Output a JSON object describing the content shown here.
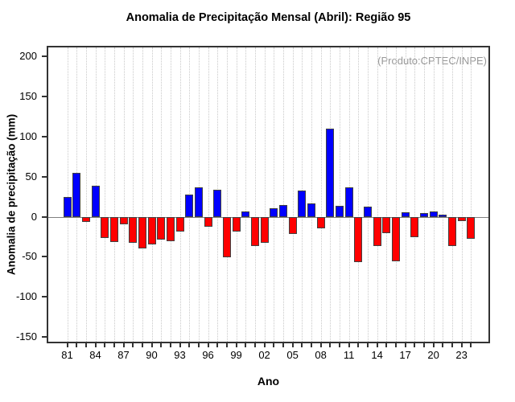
{
  "chart_data": {
    "type": "bar",
    "title": "Anomalia de Precipitação Mensal (Abril): Região 95",
    "xlabel": "Ano",
    "ylabel": "Anomalia de precipitação (mm)",
    "annotation": "(Produto:CPTEC/INPE)",
    "grid": "vertical-dotted",
    "legend_position": "none",
    "ylim": [
      -158,
      213
    ],
    "yticks": [
      200,
      150,
      100,
      50,
      0,
      -50,
      -100,
      -150
    ],
    "xticks_labeled": [
      "81",
      "84",
      "87",
      "90",
      "93",
      "96",
      "99",
      "02",
      "05",
      "08",
      "11",
      "14",
      "17",
      "20",
      "23"
    ],
    "bar_colors": {
      "positive": "#0000ff",
      "negative": "#ff0000"
    },
    "categories": [
      "81",
      "82",
      "83",
      "84",
      "85",
      "86",
      "87",
      "88",
      "89",
      "90",
      "91",
      "92",
      "93",
      "94",
      "95",
      "96",
      "97",
      "98",
      "99",
      "00",
      "01",
      "02",
      "03",
      "04",
      "05",
      "06",
      "07",
      "08",
      "09",
      "10",
      "11",
      "12",
      "13",
      "14",
      "15",
      "16",
      "17",
      "18",
      "19",
      "20",
      "21",
      "22",
      "23",
      "24"
    ],
    "values": [
      25,
      55,
      -6,
      39,
      -26,
      -31,
      -9,
      -32,
      -39,
      -34,
      -28,
      -30,
      -18,
      28,
      37,
      -12,
      34,
      -50,
      -18,
      7,
      -36,
      -32,
      11,
      15,
      -21,
      33,
      17,
      -14,
      110,
      14,
      37,
      -56,
      13,
      -36,
      -20,
      -55,
      6,
      -25,
      5,
      7,
      3,
      -36,
      -5,
      -27
    ]
  }
}
